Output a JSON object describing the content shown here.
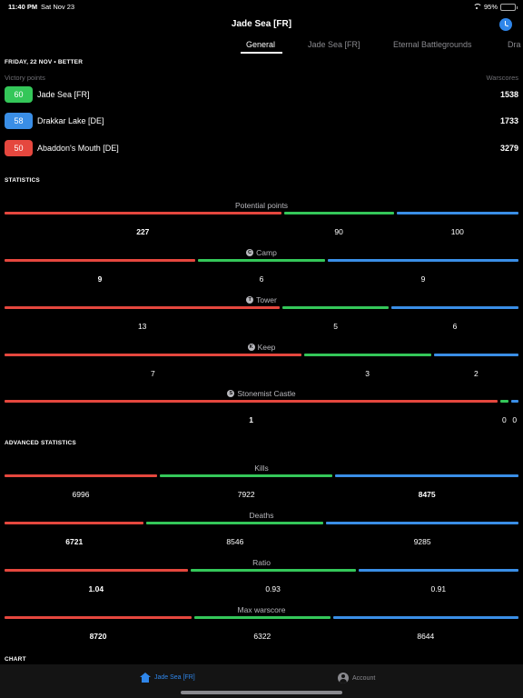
{
  "status": {
    "time": "11:40 PM",
    "date": "Sat Nov 23",
    "battery_pct": "95%",
    "battery_level": 0.95
  },
  "nav": {
    "title": "Jade Sea [FR]",
    "history_icon": "clock-icon"
  },
  "tabs": [
    {
      "label": "General",
      "active": true
    },
    {
      "label": "Jade Sea [FR]",
      "active": false
    },
    {
      "label": "Eternal Battlegrounds",
      "active": false
    },
    {
      "label": "Dra",
      "active": false
    }
  ],
  "colors": {
    "red": "#e5473e",
    "green": "#34c759",
    "blue": "#3a8ee6",
    "accent": "#2f86ea"
  },
  "summary": {
    "date_header": "FRIDAY, 22 NOV • BETTER",
    "vp_label": "Victory points",
    "ws_label": "Warscores",
    "worlds": [
      {
        "vp": "60",
        "name": "Jade Sea [FR]",
        "warscore": "1538",
        "color": "#34c759"
      },
      {
        "vp": "58",
        "name": "Drakkar Lake [DE]",
        "warscore": "1733",
        "color": "#3a8ee6"
      },
      {
        "vp": "50",
        "name": "Abaddon's Mouth [DE]",
        "warscore": "3279",
        "color": "#e5473e"
      }
    ]
  },
  "statistics": {
    "header": "STATISTICS",
    "items": [
      {
        "title": "Potential points",
        "icon": "",
        "values": [
          "227",
          "90",
          "100"
        ],
        "fractions": [
          0.544,
          0.216,
          0.24
        ],
        "bold": [
          true,
          false,
          false
        ]
      },
      {
        "title": "Camp",
        "icon": "camp-icon",
        "values": [
          "9",
          "6",
          "9"
        ],
        "fractions": [
          0.375,
          0.25,
          0.375
        ],
        "bold": [
          true,
          false,
          false
        ]
      },
      {
        "title": "Tower",
        "icon": "tower-icon",
        "values": [
          "13",
          "5",
          "6"
        ],
        "fractions": [
          0.5417,
          0.2083,
          0.25
        ],
        "bold": [
          false,
          false,
          false
        ]
      },
      {
        "title": "Keep",
        "icon": "keep-icon",
        "values": [
          "7",
          "3",
          "2"
        ],
        "fractions": [
          0.5833,
          0.25,
          0.1667
        ],
        "bold": [
          false,
          false,
          false
        ]
      },
      {
        "title": "Stonemist Castle",
        "icon": "castle-icon",
        "values": [
          "1",
          "0",
          "0"
        ],
        "fractions": [
          0.97,
          0.015,
          0.015
        ],
        "bold": [
          true,
          false,
          false
        ]
      }
    ]
  },
  "advanced": {
    "header": "ADVANCED STATISTICS",
    "items": [
      {
        "title": "Kills",
        "values": [
          "6996",
          "7922",
          "8475"
        ],
        "fractions": [
          0.3,
          0.34,
          0.36
        ],
        "bold": [
          false,
          false,
          true
        ]
      },
      {
        "title": "Deaths",
        "values": [
          "6721",
          "8546",
          "9285"
        ],
        "fractions": [
          0.274,
          0.348,
          0.378
        ],
        "bold": [
          true,
          false,
          false
        ]
      },
      {
        "title": "Ratio",
        "values": [
          "1.04",
          "0.93",
          "0.91"
        ],
        "fractions": [
          0.36,
          0.325,
          0.315
        ],
        "bold": [
          true,
          false,
          false
        ]
      },
      {
        "title": "Max warscore",
        "values": [
          "8720",
          "6322",
          "8644"
        ],
        "fractions": [
          0.368,
          0.267,
          0.365
        ],
        "bold": [
          true,
          false,
          false
        ]
      }
    ]
  },
  "chart_header": "CHART",
  "tabbar": [
    {
      "label": "Jade Sea [FR]",
      "icon": "home-icon",
      "active": true
    },
    {
      "label": "Account",
      "icon": "account-icon",
      "active": false
    }
  ]
}
